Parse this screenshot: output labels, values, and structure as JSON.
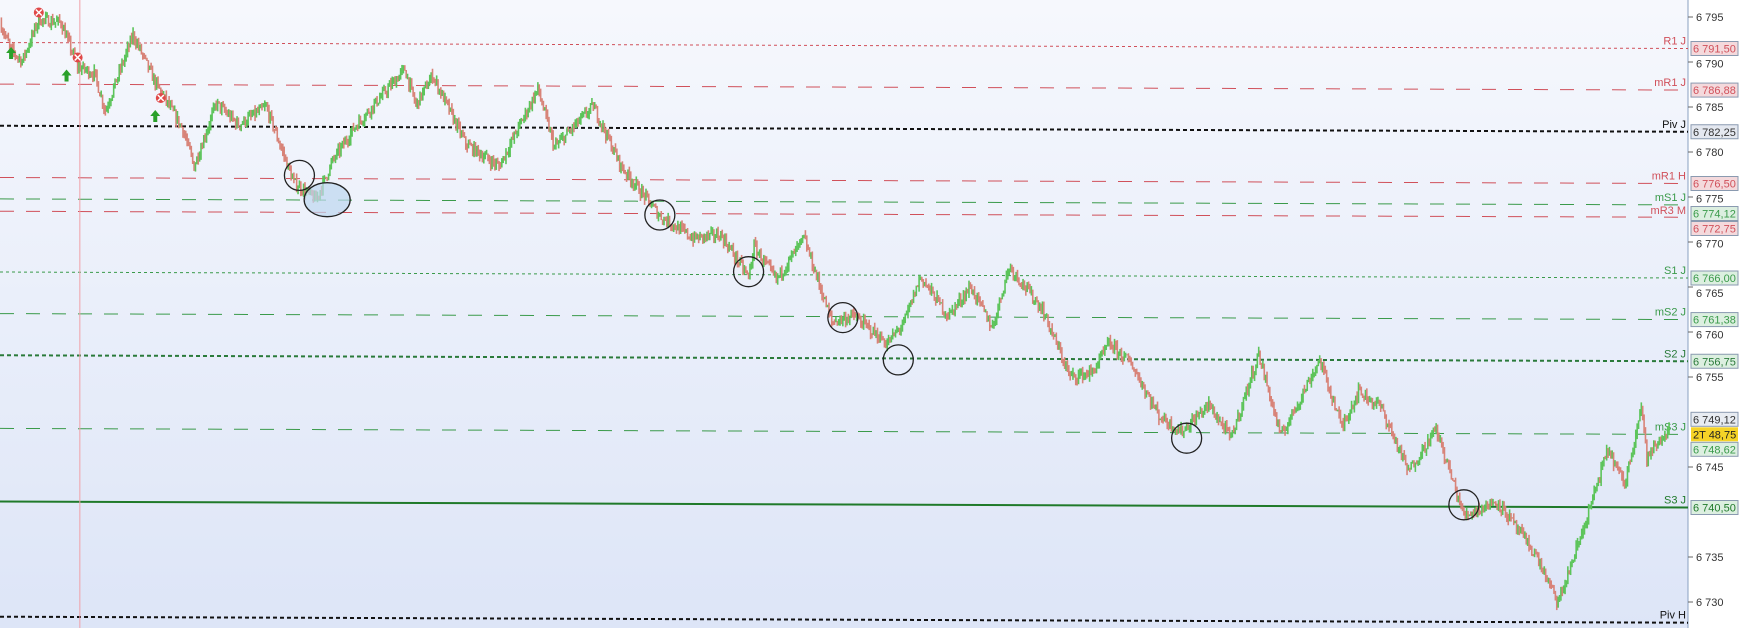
{
  "chart_data": {
    "type": "candlestick",
    "y_axis": {
      "range": [
        6727.5,
        6796.5
      ],
      "ticks": [
        "6 795",
        "6 790",
        "6 785",
        "6 780",
        "6 775",
        "6 770",
        "6 765",
        "6 760",
        "6 755",
        "6 745",
        "6 735",
        "6 730"
      ],
      "tick_values": [
        6795,
        6790,
        6785,
        6780,
        6775,
        6770,
        6765,
        6760,
        6755,
        6745,
        6735,
        6730
      ],
      "position": "right"
    },
    "x_range_bars": [
      0,
      302
    ],
    "colors": {
      "up": "#5cc45a",
      "down": "#d88378",
      "background_top": "#f6f8fd",
      "background_bottom": "#dde5f7"
    },
    "price_path": [
      [
        0,
        6794.4
      ],
      [
        2,
        6791.3
      ],
      [
        4,
        6790.1
      ],
      [
        7,
        6794.7
      ],
      [
        11,
        6794.4
      ],
      [
        14,
        6789.5
      ],
      [
        17,
        6788.7
      ],
      [
        19,
        6784.6
      ],
      [
        24,
        6793
      ],
      [
        28,
        6787.7
      ],
      [
        33,
        6782.5
      ],
      [
        35,
        6778.4
      ],
      [
        39,
        6785.4
      ],
      [
        43,
        6783
      ],
      [
        48,
        6785
      ],
      [
        53,
        6776.6
      ],
      [
        57,
        6774.7
      ],
      [
        60,
        6779
      ],
      [
        64,
        6782.8
      ],
      [
        73,
        6789.2
      ],
      [
        75,
        6785.2
      ],
      [
        78,
        6788.5
      ],
      [
        84,
        6780.9
      ],
      [
        90,
        6778.4
      ],
      [
        97,
        6787
      ],
      [
        100,
        6780.5
      ],
      [
        107,
        6785.1
      ],
      [
        112,
        6778.4
      ],
      [
        119,
        6772.9
      ],
      [
        125,
        6770.4
      ],
      [
        130,
        6770.8
      ],
      [
        135,
        6766.1
      ],
      [
        136,
        6769.5
      ],
      [
        140,
        6765.8
      ],
      [
        145,
        6770.4
      ],
      [
        150,
        6761.1
      ],
      [
        154,
        6761.8
      ],
      [
        160,
        6758.7
      ],
      [
        163,
        6761
      ],
      [
        166,
        6766.1
      ],
      [
        171,
        6761.8
      ],
      [
        175,
        6765
      ],
      [
        179,
        6760.5
      ],
      [
        182,
        6767.3
      ],
      [
        188,
        6762.5
      ],
      [
        193,
        6755
      ],
      [
        197,
        6755.5
      ],
      [
        200,
        6758.7
      ],
      [
        204,
        6756.5
      ],
      [
        209,
        6750.7
      ],
      [
        213,
        6748.9
      ],
      [
        218,
        6751.9
      ],
      [
        222,
        6748.2
      ],
      [
        227,
        6757.5
      ],
      [
        231,
        6748.4
      ],
      [
        238,
        6756.9
      ],
      [
        242,
        6749.5
      ],
      [
        245,
        6753.4
      ],
      [
        249,
        6751.7
      ],
      [
        254,
        6744.5
      ],
      [
        259,
        6749.2
      ],
      [
        264,
        6739.6
      ],
      [
        270,
        6741.2
      ],
      [
        277,
        6735.2
      ],
      [
        281,
        6729.8
      ],
      [
        286,
        6739
      ],
      [
        290,
        6747
      ],
      [
        293,
        6743
      ],
      [
        296,
        6751.9
      ],
      [
        297,
        6746
      ],
      [
        301,
        6749.2
      ]
    ],
    "levels": [
      {
        "label": "R1 J",
        "value": 6791.5,
        "value_text": "6 791,50",
        "color": "#d0505a",
        "style": "dotted"
      },
      {
        "label": "mR1 J",
        "value": 6786.88,
        "value_text": "6 786,88",
        "color": "#d0505a",
        "style": "dashed"
      },
      {
        "label": "Piv J",
        "value": 6782.25,
        "value_text": "6 782,25",
        "color": "#111111",
        "style": "dotted-bold"
      },
      {
        "label": "mR1 H",
        "value": 6776.5,
        "value_text": "6 776,50",
        "color": "#d0505a",
        "style": "dashed"
      },
      {
        "label": "mS1 J",
        "value": 6774.12,
        "value_text": "6 774,12",
        "color": "#3a9a4a",
        "style": "dashed"
      },
      {
        "label": "mR3 M",
        "value": 6772.75,
        "value_text": "6 772,75",
        "color": "#d0505a",
        "style": "dashed"
      },
      {
        "label": "S1 J",
        "value": 6766.0,
        "value_text": "6 766,00",
        "color": "#3a9a4a",
        "style": "dotted"
      },
      {
        "label": "mS2 J",
        "value": 6761.38,
        "value_text": "6 761,38",
        "color": "#3a9a4a",
        "style": "dashed"
      },
      {
        "label": "S2 J",
        "value": 6756.75,
        "value_text": "6 756,75",
        "color": "#2a7a3a",
        "style": "dotted-bold"
      },
      {
        "label": "mS3 J",
        "value": 6748.62,
        "value_text": "6 748,62",
        "color": "#3a9a4a",
        "style": "dashed"
      },
      {
        "label": "S3 J",
        "value": 6740.5,
        "value_text": "6 740,50",
        "color": "#1f7a2a",
        "style": "solid"
      },
      {
        "label": "Piv H",
        "value": 6727.7,
        "value_text": "",
        "color": "#111111",
        "style": "dotted-bold"
      }
    ],
    "last_price": {
      "value_text": "6 749,12"
    },
    "current_tag": {
      "text": "2T 48,75",
      "color": "#f5d327"
    },
    "annotations_circles": [
      [
        54,
        6777.4
      ],
      [
        59,
        6774.7,
        "filled"
      ],
      [
        119,
        6773
      ],
      [
        135,
        6766.7
      ],
      [
        152,
        6761.6
      ],
      [
        162,
        6756.9
      ],
      [
        214,
        6748.2
      ],
      [
        264,
        6740.8
      ]
    ],
    "sell_markers": [
      [
        7,
        6795.5
      ],
      [
        14,
        6790.5
      ],
      [
        29,
        6786
      ]
    ],
    "buy_markers": [
      [
        2,
        6791
      ],
      [
        12,
        6788.5
      ],
      [
        28,
        6784
      ]
    ],
    "vertical_line_bar": 14.4
  }
}
